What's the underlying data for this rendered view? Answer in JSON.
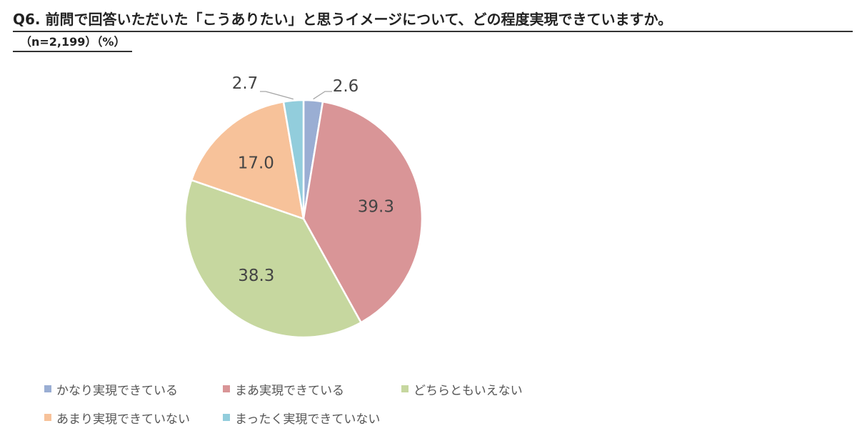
{
  "header": {
    "title": "Q6. 前問で回答いただいた「こうありたい」と思うイメージについて、どの程度実現できていますか。",
    "subtitle": "（n=2,199）（%）"
  },
  "chart_data": {
    "type": "pie",
    "title": "Q6. 前問で回答いただいた「こうありたい」と思うイメージについて、どの程度実現できていますか。",
    "subtitle": "（n=2,199）（%）",
    "start_angle_deg": 0,
    "direction": "clockwise",
    "legend_position": "bottom-left",
    "slices": [
      {
        "label": "かなり実現できている",
        "value": 2.6,
        "value_label": "2.6",
        "color": "#9aaed3",
        "label_outside": true
      },
      {
        "label": "まあ実現できている",
        "value": 39.3,
        "value_label": "39.3",
        "color": "#d99597",
        "label_outside": false
      },
      {
        "label": "どちらともいえない",
        "value": 38.3,
        "value_label": "38.3",
        "color": "#c6d79f",
        "label_outside": false
      },
      {
        "label": "あまり実現できていない",
        "value": 17.0,
        "value_label": "17.0",
        "color": "#f7c29a",
        "label_outside": false
      },
      {
        "label": "まったく実現できていない",
        "value": 2.7,
        "value_label": "2.7",
        "color": "#92cddc",
        "label_outside": true
      }
    ]
  }
}
